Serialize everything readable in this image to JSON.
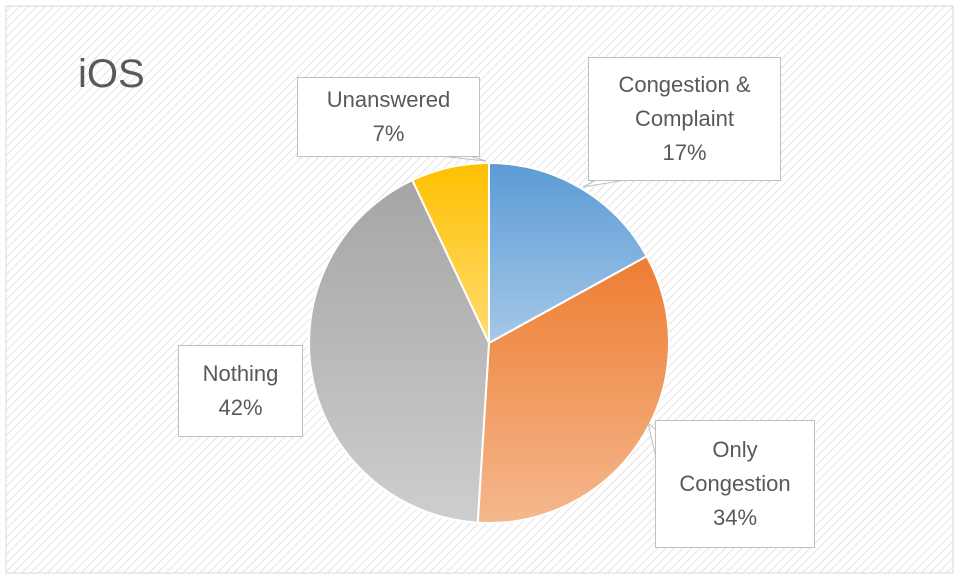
{
  "chart_data": {
    "type": "pie",
    "title": "iOS",
    "categories": [
      "Congestion & Complaint",
      "Only Congestion",
      "Nothing",
      "Unanswered"
    ],
    "values": [
      17,
      34,
      42,
      7
    ],
    "value_labels": [
      "17%",
      "34%",
      "42%",
      "7%"
    ],
    "colors": [
      "#5b9bd5",
      "#ed7d31",
      "#a5a5a5",
      "#ffc000"
    ]
  }
}
